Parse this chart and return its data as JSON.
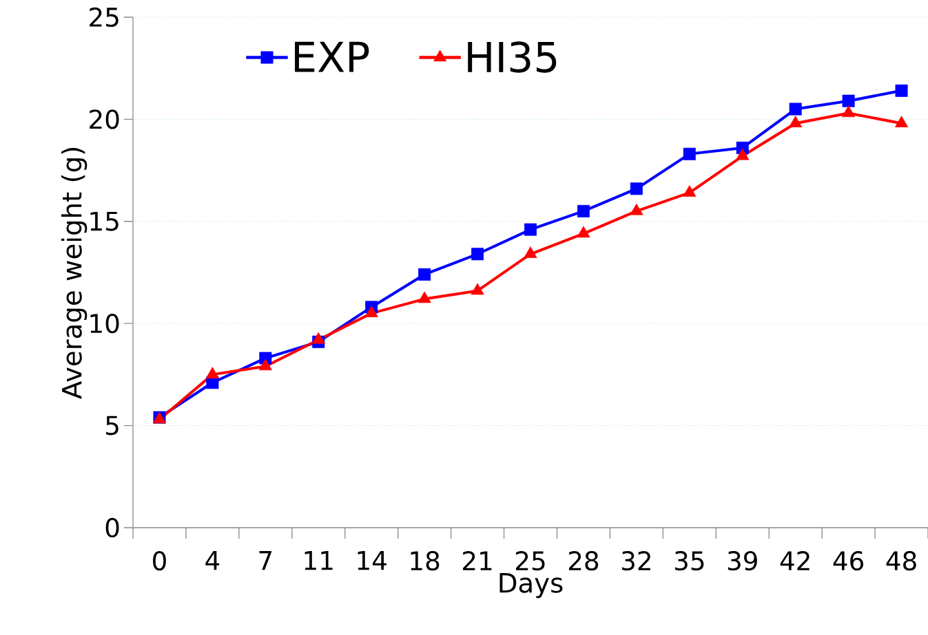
{
  "chart_data": {
    "type": "line",
    "xlabel": "Days",
    "ylabel": "Average weight (g)",
    "categories": [
      "0",
      "4",
      "7",
      "11",
      "14",
      "18",
      "21",
      "25",
      "28",
      "32",
      "35",
      "39",
      "42",
      "46",
      "48"
    ],
    "series": [
      {
        "name": "EXP",
        "color": "#0000ff",
        "marker": "square",
        "values": [
          5.4,
          7.1,
          8.3,
          9.1,
          10.8,
          12.4,
          13.4,
          14.6,
          15.5,
          16.6,
          18.3,
          18.6,
          20.5,
          20.9,
          21.4
        ]
      },
      {
        "name": "HI35",
        "color": "#ff0000",
        "marker": "triangle",
        "values": [
          5.3,
          7.5,
          7.9,
          9.2,
          10.5,
          11.2,
          11.6,
          13.4,
          14.4,
          15.5,
          16.4,
          18.2,
          19.8,
          20.3,
          19.8
        ]
      }
    ],
    "ylim": [
      0,
      25
    ],
    "yticks": [
      0,
      5,
      10,
      15,
      20,
      25
    ],
    "grid": "y",
    "legend": "top",
    "line_style": "solid"
  }
}
